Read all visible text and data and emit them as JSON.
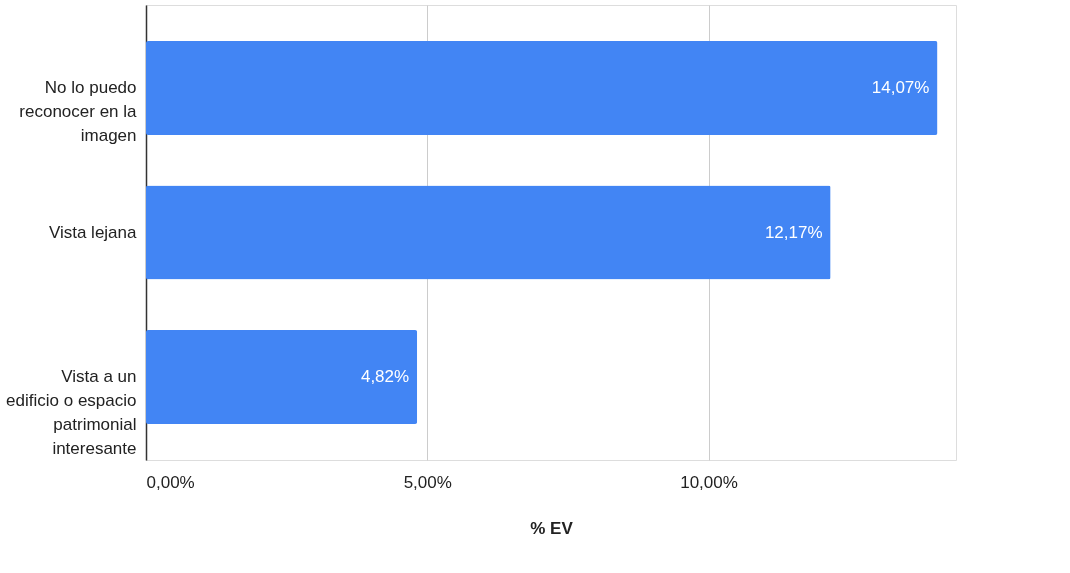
{
  "chart_data": {
    "type": "bar",
    "orientation": "horizontal",
    "xlabel": "% EV",
    "categories": [
      "No lo puedo reconocer en la imagen",
      "Vista lejana",
      "Vista a un edificio o espacio patrimonial interesante"
    ],
    "values": [
      14.07,
      12.17,
      4.82
    ],
    "value_labels": [
      "14,07%",
      "12,17%",
      "4,82%"
    ],
    "color": "#4285f4",
    "xlim": [
      0,
      14.4
    ],
    "xticks": [
      {
        "value": 0,
        "label": "0,00%"
      },
      {
        "value": 5,
        "label": "5,00%"
      },
      {
        "value": 10,
        "label": "10,00%"
      }
    ],
    "grid": "x"
  }
}
